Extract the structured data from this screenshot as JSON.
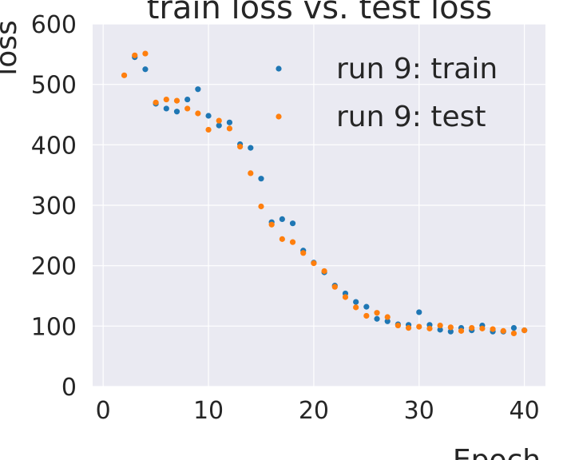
{
  "chart_data": {
    "type": "scatter",
    "title": "train loss vs. test loss",
    "xlabel": "Epoch",
    "ylabel": "loss",
    "xlim": [
      -1,
      42
    ],
    "ylim": [
      0,
      600
    ],
    "xticks": [
      "0",
      "10",
      "20",
      "30",
      "40"
    ],
    "yticks": [
      "0",
      "100",
      "200",
      "300",
      "400",
      "500",
      "600"
    ],
    "grid": true,
    "legend_position": "top-right",
    "series": [
      {
        "name": "run 9: train",
        "color": "#1f77b4",
        "x": [
          3,
          4,
          5,
          6,
          7,
          8,
          9,
          10,
          11,
          12,
          13,
          14,
          15,
          16,
          17,
          18,
          19,
          20,
          21,
          22,
          23,
          24,
          25,
          26,
          27,
          28,
          29,
          30,
          31,
          32,
          33,
          34,
          35,
          36,
          37,
          38,
          39,
          40
        ],
        "y": [
          545,
          525,
          468,
          460,
          455,
          475,
          492,
          448,
          432,
          437,
          401,
          395,
          344,
          272,
          277,
          270,
          225,
          205,
          189,
          167,
          154,
          140,
          132,
          112,
          108,
          103,
          102,
          123,
          102,
          94,
          91,
          97,
          93,
          101,
          91,
          91,
          97,
          93
        ]
      },
      {
        "name": "run 9: test",
        "color": "#ff7f0e",
        "x": [
          2,
          3,
          4,
          5,
          6,
          7,
          8,
          9,
          10,
          11,
          12,
          13,
          14,
          15,
          16,
          17,
          18,
          19,
          20,
          21,
          22,
          23,
          24,
          25,
          26,
          27,
          28,
          29,
          30,
          31,
          32,
          33,
          34,
          35,
          36,
          37,
          38,
          39,
          40
        ],
        "y": [
          515,
          548,
          551,
          470,
          475,
          473,
          460,
          452,
          425,
          440,
          427,
          397,
          353,
          298,
          268,
          244,
          239,
          221,
          204,
          191,
          165,
          148,
          131,
          117,
          122,
          115,
          101,
          97,
          99,
          96,
          101,
          98,
          92,
          97,
          96,
          95,
          92,
          88,
          93
        ]
      }
    ]
  }
}
